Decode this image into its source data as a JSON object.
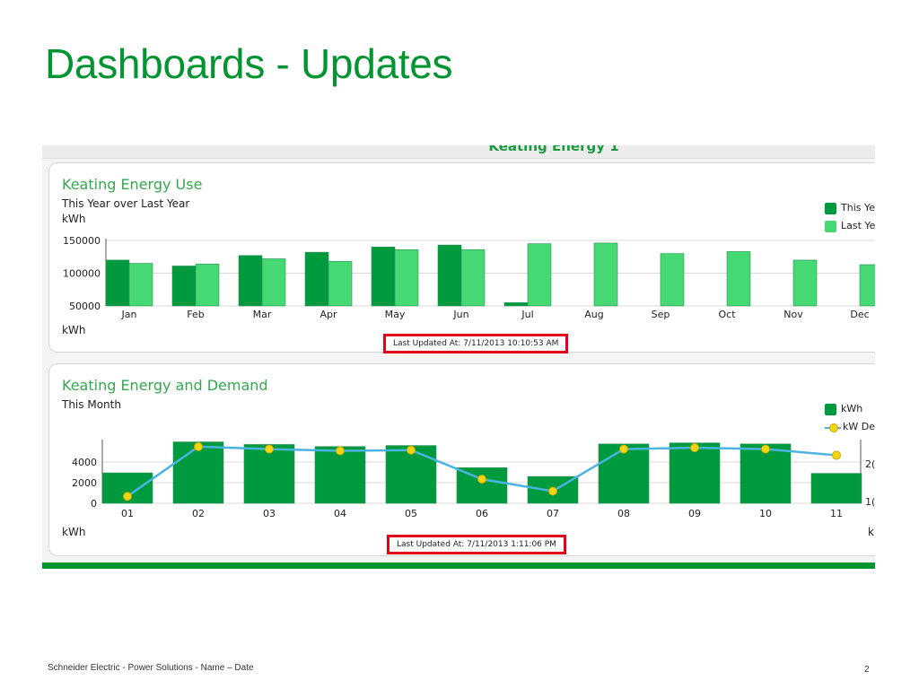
{
  "slide": {
    "title": "Dashboards - Updates",
    "footer": "Schneider Electric - Power Solutions - Name – Date",
    "page_number": "2"
  },
  "screenshot": {
    "title": "Keating Energy 1"
  },
  "colors": {
    "brand_green": "#009530",
    "this_year": "#009a3e",
    "last_year": "#45d873",
    "demand_line": "#4bb3e0",
    "demand_marker": "#f2d613",
    "highlight_box": "#e3001b"
  },
  "chart_data": [
    {
      "type": "bar",
      "title": "Keating Energy Use",
      "subtitle": "This Year over Last Year",
      "ylabel": "kWh",
      "xlabel": "kWh",
      "categories": [
        "Jan",
        "Feb",
        "Mar",
        "Apr",
        "May",
        "Jun",
        "Jul",
        "Aug",
        "Sep",
        "Oct",
        "Nov",
        "Dec"
      ],
      "series": [
        {
          "name": "This Ye",
          "values": [
            120000,
            111000,
            127000,
            132000,
            140000,
            143000,
            55000,
            null,
            null,
            null,
            null,
            null
          ]
        },
        {
          "name": "Last Ye",
          "values": [
            115000,
            114000,
            122000,
            118000,
            136000,
            136000,
            145000,
            146000,
            130000,
            133000,
            120000,
            113000
          ]
        }
      ],
      "yticks": [
        "150000",
        "100000",
        "50000"
      ],
      "ylim": [
        50000,
        150000
      ],
      "legend": "top-right",
      "grid": true,
      "last_updated": "Last Updated At: 7/11/2013 10:10:53 AM"
    },
    {
      "type": "bar",
      "title": "Keating Energy and Demand",
      "subtitle": "This Month",
      "ylabel": "kWh",
      "y2label": "k",
      "categories": [
        "01",
        "02",
        "03",
        "04",
        "05",
        "06",
        "07",
        "08",
        "09",
        "10",
        "11"
      ],
      "series": [
        {
          "name": "kWh",
          "type": "bar",
          "values": [
            2950,
            5950,
            5700,
            5500,
            5600,
            3450,
            2600,
            5750,
            5850,
            5750,
            2900
          ]
        },
        {
          "name": "kW Dema",
          "type": "line",
          "axis": "right",
          "values": [
            110,
            255,
            248,
            243,
            245,
            160,
            125,
            248,
            252,
            248,
            230
          ]
        }
      ],
      "yticks": [
        "4000",
        "2000",
        "0"
      ],
      "ylim": [
        0,
        6000
      ],
      "y2ticks": [
        "2(",
        "1("
      ],
      "y2lim": [
        100,
        260
      ],
      "legend": "top-right",
      "grid": true,
      "last_updated": "Last Updated At: 7/11/2013 1:11:06 PM"
    }
  ]
}
